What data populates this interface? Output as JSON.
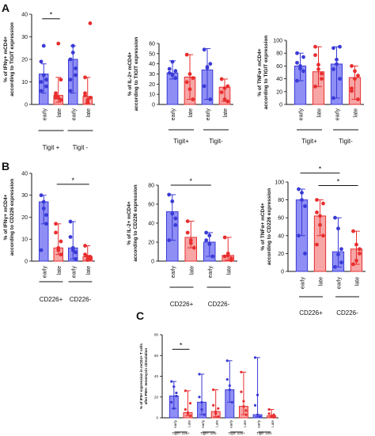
{
  "figure": {
    "panel_letters": [
      "A",
      "B",
      "C"
    ],
    "colors": {
      "early": "#3a3ad6",
      "late": "#e82e2e",
      "early_fill": "#8e8ef5",
      "late_fill": "#f7a5a5",
      "axis": "#111111"
    }
  },
  "chart_data": [
    {
      "type": "bar",
      "panel": "A",
      "ylabel": [
        "% of IFNγ+ mCD4+",
        "according to TIGIT expression"
      ],
      "ylim": [
        0,
        40
      ],
      "yticks": [
        0,
        10,
        20,
        30,
        40
      ],
      "categories": [
        "early",
        "late",
        "early",
        "late"
      ],
      "bar_colors": [
        "early",
        "late",
        "early",
        "late"
      ],
      "values": [
        13.5,
        4.0,
        20.0,
        3.5
      ],
      "error_low": [
        5.0,
        1.0,
        5.0,
        0.5
      ],
      "error_high": [
        18.0,
        12.0,
        26.0,
        12.0
      ],
      "points": [
        [
          19,
          13,
          8,
          6,
          26,
          11,
          10
        ],
        [
          5,
          3,
          2,
          4,
          27,
          11,
          3
        ],
        [
          20,
          26,
          13,
          6,
          23,
          16,
          11
        ],
        [
          4,
          2,
          36,
          12,
          1,
          3,
          5
        ]
      ],
      "groups": [
        {
          "label": "Tigit +",
          "from": 0,
          "to": 1
        },
        {
          "label": "Tigit -",
          "from": 2,
          "to": 3
        }
      ],
      "significance": [
        {
          "from": 0,
          "to": 1,
          "y": 38,
          "label": "*"
        }
      ]
    },
    {
      "type": "bar",
      "panel": "A",
      "ylabel": [
        "% of IL-2+ mCD4+",
        "according to TIGIT expression"
      ],
      "ylim": [
        0,
        60
      ],
      "yticks": [
        0,
        10,
        20,
        30,
        40,
        50,
        60
      ],
      "categories": [
        "early",
        "late",
        "early",
        "late"
      ],
      "bar_colors": [
        "early",
        "late",
        "early",
        "late"
      ],
      "values": [
        31,
        27,
        34,
        17
      ],
      "error_low": [
        25,
        5,
        5,
        3
      ],
      "error_high": [
        43,
        49,
        55,
        25
      ],
      "points": [
        [
          31,
          42,
          26,
          35,
          29,
          33
        ],
        [
          49,
          30,
          5,
          22,
          15,
          26
        ],
        [
          54,
          37,
          5,
          18,
          36,
          40
        ],
        [
          25,
          5,
          18,
          12,
          16,
          3
        ]
      ],
      "groups": [
        {
          "label": "Tigit+",
          "from": 0,
          "to": 1
        },
        {
          "label": "Tigit-",
          "from": 2,
          "to": 3
        }
      ],
      "significance": []
    },
    {
      "type": "bar",
      "panel": "A",
      "ylabel": [
        "% of TNFα+ mCD4+",
        "according to TIGIT expression"
      ],
      "ylim": [
        0,
        100
      ],
      "yticks": [
        0,
        20,
        40,
        60,
        80,
        100
      ],
      "categories": [
        "early",
        "late",
        "early",
        "late"
      ],
      "bar_colors": [
        "early",
        "late",
        "early",
        "late"
      ],
      "values": [
        60,
        51,
        63,
        42
      ],
      "error_low": [
        37,
        28,
        10,
        8
      ],
      "error_high": [
        80,
        90,
        90,
        60
      ],
      "points": [
        [
          80,
          60,
          52,
          37,
          56,
          74,
          65
        ],
        [
          90,
          55,
          40,
          28,
          62,
          48,
          77
        ],
        [
          88,
          70,
          40,
          10,
          63,
          90,
          55
        ],
        [
          60,
          40,
          8,
          25,
          52,
          45,
          21
        ]
      ],
      "groups": [
        {
          "label": "Tigit+",
          "from": 0,
          "to": 1
        },
        {
          "label": "Tigit-",
          "from": 2,
          "to": 3
        }
      ],
      "significance": []
    },
    {
      "type": "bar",
      "panel": "B",
      "ylabel": [
        "% of IFNγ+ mCD4+",
        "according to CD226 expression"
      ],
      "ylim": [
        0,
        40
      ],
      "yticks": [
        0,
        10,
        20,
        30,
        40
      ],
      "categories": [
        "early",
        "late",
        "early",
        "late"
      ],
      "bar_colors": [
        "early",
        "late",
        "early",
        "late"
      ],
      "values": [
        27,
        6,
        6,
        2
      ],
      "error_low": [
        17,
        3,
        1,
        0.5
      ],
      "error_high": [
        30,
        17,
        18,
        7
      ],
      "points": [
        [
          30,
          24,
          17,
          5,
          27,
          21
        ],
        [
          17,
          5,
          3,
          13,
          6,
          9
        ],
        [
          18,
          5,
          1,
          11,
          6,
          4
        ],
        [
          7,
          2,
          1,
          3,
          0.5,
          2
        ]
      ],
      "groups": [
        {
          "label": "CD226+",
          "from": 0,
          "to": 1
        },
        {
          "label": "CD226-",
          "from": 2,
          "to": 3
        }
      ],
      "significance": [
        {
          "from": 1,
          "to": 3,
          "y": 35,
          "label": "*"
        }
      ]
    },
    {
      "type": "bar",
      "panel": "B",
      "ylabel": [
        "% of IL-2+ mCD4+",
        "according to CD226 expression"
      ],
      "ylim": [
        0,
        80
      ],
      "yticks": [
        0,
        20,
        40,
        60,
        80
      ],
      "categories": [
        "early",
        "late",
        "early",
        "late"
      ],
      "bar_colors": [
        "early",
        "late",
        "early",
        "late"
      ],
      "values": [
        52,
        25,
        20,
        6
      ],
      "error_low": [
        22,
        14,
        5,
        1
      ],
      "error_high": [
        70,
        42,
        30,
        25
      ],
      "points": [
        [
          70,
          63,
          45,
          22,
          50,
          38
        ],
        [
          42,
          22,
          14,
          30,
          19
        ],
        [
          30,
          18,
          5,
          22,
          27
        ],
        [
          25,
          6,
          1,
          5,
          8,
          3
        ]
      ],
      "groups": [
        {
          "label": "CD226+",
          "from": 0,
          "to": 1
        },
        {
          "label": "CD226-",
          "from": 2,
          "to": 3
        }
      ],
      "significance": [
        {
          "from": 0,
          "to": 2,
          "y": 80,
          "label": "*"
        }
      ]
    },
    {
      "type": "bar",
      "panel": "B",
      "ylabel": [
        "% of TNFα+ mCD4+",
        "according to CD226 expression"
      ],
      "ylim": [
        0,
        100
      ],
      "yticks": [
        0,
        20,
        40,
        60,
        80,
        100
      ],
      "categories": [
        "early",
        "late",
        "early",
        "late"
      ],
      "bar_colors": [
        "early",
        "late",
        "early",
        "late"
      ],
      "values": [
        80,
        62,
        22,
        25
      ],
      "error_low": [
        40,
        40,
        5,
        8
      ],
      "error_high": [
        92,
        80,
        60,
        45
      ],
      "points": [
        [
          92,
          88,
          73,
          40,
          80,
          20
        ],
        [
          80,
          62,
          40,
          30,
          52,
          76,
          66
        ],
        [
          60,
          48,
          25,
          5,
          19,
          10
        ],
        [
          45,
          30,
          25,
          8,
          12,
          20
        ]
      ],
      "groups": [
        {
          "label": "CD226+",
          "from": 0,
          "to": 1
        },
        {
          "label": "CD226-",
          "from": 2,
          "to": 3
        }
      ],
      "significance": [
        {
          "from": 0,
          "to": 2,
          "y": 110,
          "label": "*"
        },
        {
          "from": 1,
          "to": 3,
          "y": 96,
          "label": "*"
        }
      ]
    },
    {
      "type": "bar",
      "panel": "C",
      "ylabel": [
        "% of IFN+ expression in mCD4+ T cells",
        "after PMA- Ionomycin stimulation"
      ],
      "ylim": [
        0,
        80
      ],
      "yticks": [
        0,
        20,
        40,
        60,
        80
      ],
      "categories": [
        "early",
        "Late",
        "early",
        "Late",
        "early",
        "Late",
        "early",
        "Late"
      ],
      "bar_colors": [
        "early",
        "late",
        "early",
        "late",
        "early",
        "late",
        "early",
        "late"
      ],
      "values": [
        21,
        5,
        15,
        6,
        27,
        11,
        3,
        2
      ],
      "error_low": [
        9,
        2,
        3,
        1,
        15,
        3,
        1,
        0.5
      ],
      "error_high": [
        35,
        26,
        42,
        27,
        55,
        44,
        58,
        8
      ],
      "points": [
        [
          35,
          30,
          21,
          15,
          9,
          24
        ],
        [
          26,
          5,
          2,
          8,
          4,
          14
        ],
        [
          42,
          15,
          3,
          20,
          8
        ],
        [
          27,
          6,
          1,
          12,
          4,
          9
        ],
        [
          55,
          27,
          15,
          37,
          31
        ],
        [
          44,
          11,
          3,
          25,
          16,
          7
        ],
        [
          58,
          3,
          1,
          12,
          22
        ],
        [
          8,
          2,
          0.5,
          4,
          1,
          3
        ]
      ],
      "groups": [
        {
          "label": "Tigit+ 226+",
          "from": 0,
          "to": 1
        },
        {
          "label": "Tigit+ 226-",
          "from": 2,
          "to": 3
        },
        {
          "label": "Tigit- 226+",
          "from": 4,
          "to": 5
        },
        {
          "label": "Tigit- 226-",
          "from": 6,
          "to": 7
        }
      ],
      "significance": [
        {
          "from": 0,
          "to": 1,
          "y": 66,
          "label": "*"
        }
      ]
    }
  ]
}
